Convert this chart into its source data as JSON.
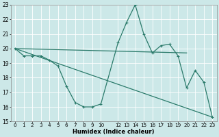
{
  "xlabel": "Humidex (Indice chaleur)",
  "background_color": "#cce8e8",
  "grid_color": "#ffffff",
  "line_color": "#2a7a6a",
  "ylim": [
    15,
    23
  ],
  "xlim": [
    -0.5,
    23.5
  ],
  "yticks": [
    15,
    16,
    17,
    18,
    19,
    20,
    21,
    22,
    23
  ],
  "xtick_vals": [
    0,
    1,
    2,
    3,
    4,
    5,
    6,
    7,
    8,
    9,
    10,
    12,
    13,
    14,
    15,
    16,
    17,
    18,
    19,
    20,
    21,
    22,
    23
  ],
  "xtick_labels": [
    "0",
    "1",
    "2",
    "3",
    "4",
    "5",
    "6",
    "7",
    "8",
    "9",
    "10",
    "12",
    "13",
    "14",
    "15",
    "16",
    "17",
    "18",
    "19",
    "20",
    "21",
    "22",
    "23"
  ],
  "series_main": {
    "x": [
      0,
      1,
      2,
      3,
      4,
      5,
      6,
      7,
      8,
      9,
      10,
      12,
      13,
      14,
      15,
      16,
      17,
      18,
      19,
      20,
      21,
      22,
      23
    ],
    "y": [
      20.0,
      19.5,
      19.5,
      19.5,
      19.2,
      18.8,
      17.4,
      16.3,
      16.0,
      16.0,
      16.2,
      20.4,
      21.8,
      23.0,
      21.0,
      19.7,
      20.2,
      20.3,
      19.5,
      17.3,
      18.5,
      17.7,
      15.3
    ]
  },
  "series_flat": {
    "x": [
      0,
      20
    ],
    "y": [
      20.0,
      19.7
    ]
  },
  "series_diag": {
    "x": [
      0,
      23
    ],
    "y": [
      20.0,
      15.3
    ]
  }
}
